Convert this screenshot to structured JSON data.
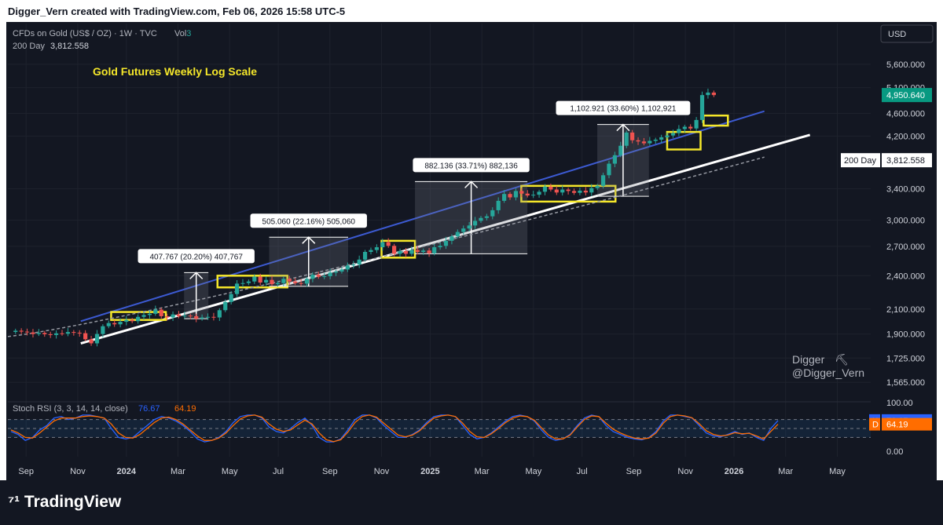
{
  "header": {
    "created_line": "Digger_Vern created with TradingView.com, Feb 06, 2026 15:58 UTC-5"
  },
  "legend": {
    "symbol_line": "CFDs on Gold (US$ / OZ) · 1W · TVC",
    "vol_label": "Vol",
    "vol_value": "3",
    "ma_label": "200 Day",
    "ma_value": "3,812.558"
  },
  "chart_title": "Gold Futures Weekly Log Scale",
  "currency_button": "USD",
  "watermark": {
    "line1": "Digger",
    "line2": "@Digger_Vern"
  },
  "footer_logo": "TradingView",
  "colors": {
    "bg": "#131722",
    "up": "#26a69a",
    "down": "#ef5350",
    "channel_upper": "#3c5ad2",
    "channel_lower": "#ffffff",
    "ma": "#9598a1",
    "box": "#f5e72a",
    "stoch_k": "#2962ff",
    "stoch_d": "#ff6d00",
    "price_label": "#089981"
  },
  "chart_data": {
    "type": "candlestick",
    "title": "Gold Futures Weekly Log Scale",
    "y_scale": "log",
    "ylim": [
      1480,
      6000
    ],
    "y_ticks": [
      "5,600.000",
      "5,100.000",
      "4,600.000",
      "4,200.000",
      "3,400.000",
      "3,000.000",
      "2,700.000",
      "2,400.000",
      "2,100.000",
      "1,900.000",
      "1,725.000",
      "1,565.000"
    ],
    "x_ticks": [
      "Sep",
      "Nov",
      "2024",
      "Mar",
      "May",
      "Jul",
      "Sep",
      "Nov",
      "2025",
      "Mar",
      "May",
      "Jul",
      "Sep",
      "Nov",
      "2026",
      "Mar",
      "May"
    ],
    "last_price": "4,950.640",
    "ma_label": "200 Day",
    "ma_value": "3,812.558",
    "ma_start": 1880,
    "ma_end": 3860,
    "closes": [
      1925,
      1918,
      1912,
      1900,
      1908,
      1898,
      1892,
      1905,
      1902,
      1915,
      1910,
      1906,
      1860,
      1830,
      1900,
      1960,
      1985,
      1975,
      1995,
      2010,
      2000,
      2035,
      2050,
      2060,
      2095,
      2040,
      2030,
      2055,
      2040,
      2045,
      2040,
      2020,
      2030,
      2035,
      2030,
      2090,
      2160,
      2230,
      2325,
      2330,
      2345,
      2390,
      2335,
      2360,
      2320,
      2330,
      2370,
      2345,
      2330,
      2325,
      2370,
      2410,
      2390,
      2395,
      2430,
      2440,
      2460,
      2500,
      2510,
      2560,
      2640,
      2660,
      2690,
      2745,
      2705,
      2620,
      2650,
      2620,
      2660,
      2640,
      2655,
      2625,
      2690,
      2705,
      2760,
      2810,
      2860,
      2900,
      2935,
      2990,
      3025,
      3045,
      3120,
      3240,
      3330,
      3285,
      3370,
      3335,
      3310,
      3320,
      3360,
      3430,
      3390,
      3350,
      3390,
      3370,
      3345,
      3375,
      3350,
      3410,
      3440,
      3590,
      3760,
      3890,
      4040,
      4260,
      4130,
      4110,
      4080,
      4120,
      4140,
      4180,
      4210,
      4250,
      4320,
      4360,
      4330,
      4480,
      4950,
      5000,
      4950
    ],
    "x_start": "2023-08-21",
    "x_step_days": 7,
    "channel_upper": [
      [
        2023.85,
        2000
      ],
      [
        2026.1,
        4640
      ]
    ],
    "channel_lower": [
      [
        2023.85,
        1830
      ],
      [
        2026.25,
        4220
      ]
    ],
    "consolidation_boxes": [
      {
        "from": 2023.95,
        "to": 2024.13,
        "low": 2010,
        "high": 2075
      },
      {
        "from": 2024.3,
        "to": 2024.53,
        "low": 2290,
        "high": 2400
      },
      {
        "from": 2024.84,
        "to": 2024.95,
        "low": 2580,
        "high": 2760
      },
      {
        "from": 2025.3,
        "to": 2025.61,
        "low": 3230,
        "high": 3440
      },
      {
        "from": 2025.78,
        "to": 2025.89,
        "low": 3980,
        "high": 4270
      },
      {
        "from": 2025.9,
        "to": 2025.98,
        "low": 4380,
        "high": 4560
      }
    ],
    "measure_labels": [
      {
        "text": "407.767 (20.20%) 407,767",
        "from": 2024.19,
        "to": 2024.27,
        "low": 2020,
        "high": 2430
      },
      {
        "text": "505.060 (22.16%) 505,060",
        "from": 2024.47,
        "to": 2024.73,
        "low": 2300,
        "high": 2800
      },
      {
        "text": "882.136 (33.71%) 882,136",
        "from": 2024.95,
        "to": 2025.32,
        "low": 2620,
        "high": 3500
      },
      {
        "text": "1,102.921 (33.60%) 1,102,921",
        "from": 2025.55,
        "to": 2025.72,
        "low": 3300,
        "high": 4400
      }
    ],
    "stoch": {
      "label": "Stoch RSI (3, 3, 14, 14, close)",
      "k_value": "76.67",
      "d_value": "64.19",
      "k_label": "K",
      "d_label": "D",
      "ylim": [
        0,
        100
      ],
      "y_ticks": [
        "100.00",
        "0.00"
      ],
      "k": [
        40,
        30,
        10,
        20,
        45,
        60,
        85,
        90,
        80,
        85,
        95,
        95,
        90,
        85,
        50,
        20,
        15,
        20,
        40,
        60,
        80,
        90,
        85,
        75,
        60,
        40,
        15,
        5,
        10,
        20,
        40,
        70,
        90,
        95,
        95,
        85,
        55,
        40,
        35,
        50,
        70,
        85,
        60,
        20,
        5,
        5,
        15,
        45,
        80,
        95,
        95,
        85,
        60,
        40,
        20,
        20,
        30,
        45,
        70,
        90,
        95,
        95,
        90,
        60,
        30,
        15,
        20,
        35,
        55,
        75,
        90,
        95,
        90,
        75,
        45,
        20,
        10,
        15,
        30,
        60,
        85,
        95,
        90,
        60,
        40,
        30,
        20,
        15,
        12,
        20,
        40,
        75,
        95,
        95,
        90,
        85,
        60,
        35,
        25,
        22,
        30,
        40,
        30,
        35,
        20,
        10,
        50,
        76.67
      ],
      "d": [
        45,
        35,
        20,
        18,
        35,
        55,
        75,
        85,
        85,
        85,
        90,
        92,
        90,
        85,
        65,
        35,
        20,
        18,
        30,
        50,
        70,
        85,
        88,
        80,
        65,
        45,
        25,
        10,
        10,
        18,
        35,
        60,
        82,
        92,
        95,
        88,
        65,
        48,
        40,
        45,
        62,
        78,
        65,
        35,
        12,
        6,
        12,
        38,
        70,
        90,
        95,
        88,
        68,
        48,
        28,
        22,
        28,
        42,
        65,
        85,
        92,
        95,
        90,
        68,
        40,
        22,
        20,
        32,
        50,
        70,
        85,
        92,
        90,
        78,
        52,
        28,
        15,
        15,
        28,
        55,
        80,
        92,
        90,
        68,
        48,
        35,
        25,
        18,
        15,
        18,
        35,
        68,
        90,
        95,
        92,
        86,
        66,
        42,
        30,
        25,
        28,
        36,
        32,
        34,
        25,
        15,
        40,
        64.19
      ]
    }
  }
}
